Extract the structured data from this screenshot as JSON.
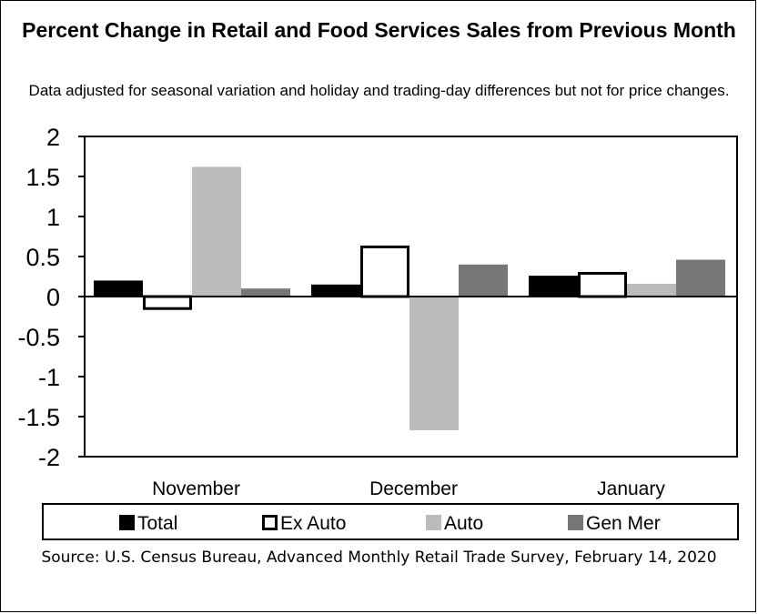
{
  "chart_data": {
    "type": "bar",
    "title": "Percent Change in Retail and Food Services Sales from Previous Month",
    "subtitle": "Data adjusted for seasonal variation and holiday and trading-day differences but not for price changes.",
    "source": "Source: U.S. Census Bureau, Advanced Monthly Retail Trade Survey, February 14, 2020",
    "categories": [
      "November",
      "December",
      "January"
    ],
    "ylim": [
      -2,
      2
    ],
    "yticks": [
      "2",
      "1.5",
      "1",
      "0.5",
      "0",
      "-0.5",
      "-1",
      "-1.5",
      "-2"
    ],
    "ytick_values": [
      2,
      1.5,
      1,
      0.5,
      0,
      -0.5,
      -1,
      -1.5,
      -2
    ],
    "grid": false,
    "legend_position": "bottom",
    "series": [
      {
        "name": "Total",
        "values": [
          0.2,
          0.15,
          0.26
        ],
        "color": "#000000",
        "style": "filled"
      },
      {
        "name": "Ex Auto",
        "values": [
          -0.15,
          0.62,
          0.29
        ],
        "color": "#ffffff",
        "style": "outlined"
      },
      {
        "name": "Auto",
        "values": [
          1.62,
          -1.67,
          0.16
        ],
        "color": "#bbbbbb",
        "style": "filled"
      },
      {
        "name": "Gen Mer",
        "values": [
          0.1,
          0.4,
          0.46
        ],
        "color": "#777777",
        "style": "filled"
      }
    ]
  }
}
